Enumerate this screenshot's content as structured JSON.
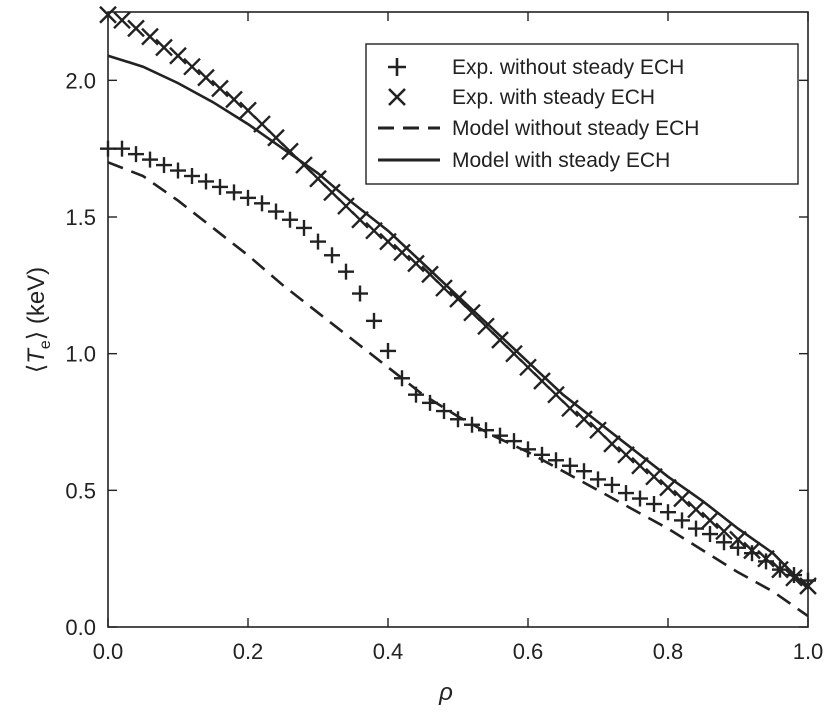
{
  "chart_data": {
    "type": "line",
    "title": "",
    "xlabel": "ρ",
    "ylabel_parts": [
      "⟨",
      "T",
      "e",
      "⟩ (keV)"
    ],
    "xlim": [
      0.0,
      1.0
    ],
    "ylim": [
      0.0,
      2.25
    ],
    "xticks": [
      0.0,
      0.2,
      0.4,
      0.6,
      0.8,
      1.0
    ],
    "xtick_labels": [
      "0.0",
      "0.2",
      "0.4",
      "0.6",
      "0.8",
      "1.0"
    ],
    "yticks": [
      0.0,
      0.5,
      1.0,
      1.5,
      2.0
    ],
    "ytick_labels": [
      "0.0",
      "0.5",
      "1.0",
      "1.5",
      "2.0"
    ],
    "grid": false,
    "legend_position": "top-right",
    "series": [
      {
        "name": "Exp. without steady ECH",
        "marker": "plus",
        "style": "markers",
        "x": [
          0.0,
          0.02,
          0.04,
          0.06,
          0.08,
          0.1,
          0.12,
          0.14,
          0.16,
          0.18,
          0.2,
          0.22,
          0.24,
          0.26,
          0.28,
          0.3,
          0.32,
          0.34,
          0.36,
          0.38,
          0.4,
          0.42,
          0.44,
          0.46,
          0.48,
          0.5,
          0.52,
          0.54,
          0.56,
          0.58,
          0.6,
          0.62,
          0.64,
          0.66,
          0.68,
          0.7,
          0.72,
          0.74,
          0.76,
          0.78,
          0.8,
          0.82,
          0.84,
          0.86,
          0.88,
          0.9,
          0.92,
          0.94,
          0.96,
          0.98,
          1.0
        ],
        "y": [
          1.75,
          1.75,
          1.73,
          1.71,
          1.69,
          1.67,
          1.65,
          1.63,
          1.61,
          1.59,
          1.57,
          1.55,
          1.52,
          1.49,
          1.46,
          1.41,
          1.36,
          1.3,
          1.22,
          1.12,
          1.01,
          0.91,
          0.85,
          0.82,
          0.79,
          0.76,
          0.74,
          0.72,
          0.7,
          0.68,
          0.65,
          0.63,
          0.61,
          0.59,
          0.57,
          0.54,
          0.52,
          0.49,
          0.47,
          0.45,
          0.42,
          0.39,
          0.36,
          0.34,
          0.31,
          0.29,
          0.27,
          0.24,
          0.21,
          0.19,
          0.17
        ]
      },
      {
        "name": "Exp. with steady ECH",
        "marker": "x",
        "style": "markers",
        "x": [
          0.0,
          0.02,
          0.04,
          0.06,
          0.08,
          0.1,
          0.12,
          0.14,
          0.16,
          0.18,
          0.2,
          0.22,
          0.24,
          0.26,
          0.28,
          0.3,
          0.32,
          0.34,
          0.36,
          0.38,
          0.4,
          0.42,
          0.44,
          0.46,
          0.48,
          0.5,
          0.52,
          0.54,
          0.56,
          0.58,
          0.6,
          0.62,
          0.64,
          0.66,
          0.68,
          0.7,
          0.72,
          0.74,
          0.76,
          0.78,
          0.8,
          0.82,
          0.84,
          0.86,
          0.88,
          0.9,
          0.92,
          0.94,
          0.96,
          0.98,
          1.0
        ],
        "y": [
          2.24,
          2.22,
          2.19,
          2.16,
          2.12,
          2.09,
          2.05,
          2.01,
          1.97,
          1.93,
          1.89,
          1.84,
          1.79,
          1.74,
          1.69,
          1.64,
          1.59,
          1.54,
          1.49,
          1.45,
          1.41,
          1.37,
          1.33,
          1.29,
          1.24,
          1.2,
          1.15,
          1.1,
          1.05,
          1.0,
          0.95,
          0.9,
          0.85,
          0.8,
          0.76,
          0.72,
          0.67,
          0.63,
          0.59,
          0.55,
          0.51,
          0.47,
          0.43,
          0.39,
          0.35,
          0.32,
          0.28,
          0.25,
          0.21,
          0.18,
          0.15
        ]
      },
      {
        "name": "Model without steady ECH",
        "style": "dashed",
        "x": [
          0.0,
          0.05,
          0.1,
          0.15,
          0.2,
          0.25,
          0.3,
          0.35,
          0.4,
          0.45,
          0.5,
          0.55,
          0.6,
          0.65,
          0.7,
          0.75,
          0.8,
          0.85,
          0.9,
          0.95,
          1.0
        ],
        "y": [
          1.7,
          1.65,
          1.56,
          1.46,
          1.36,
          1.25,
          1.15,
          1.05,
          0.95,
          0.85,
          0.77,
          0.7,
          0.64,
          0.57,
          0.5,
          0.43,
          0.36,
          0.28,
          0.2,
          0.13,
          0.04
        ]
      },
      {
        "name": "Model with steady ECH",
        "style": "solid",
        "x": [
          0.0,
          0.05,
          0.1,
          0.15,
          0.2,
          0.25,
          0.3,
          0.35,
          0.4,
          0.45,
          0.5,
          0.55,
          0.6,
          0.65,
          0.7,
          0.75,
          0.8,
          0.85,
          0.9,
          0.95,
          1.0
        ],
        "y": [
          2.09,
          2.05,
          1.99,
          1.92,
          1.84,
          1.75,
          1.66,
          1.55,
          1.45,
          1.33,
          1.21,
          1.09,
          0.97,
          0.85,
          0.75,
          0.65,
          0.55,
          0.46,
          0.36,
          0.27,
          0.14
        ]
      }
    ]
  }
}
